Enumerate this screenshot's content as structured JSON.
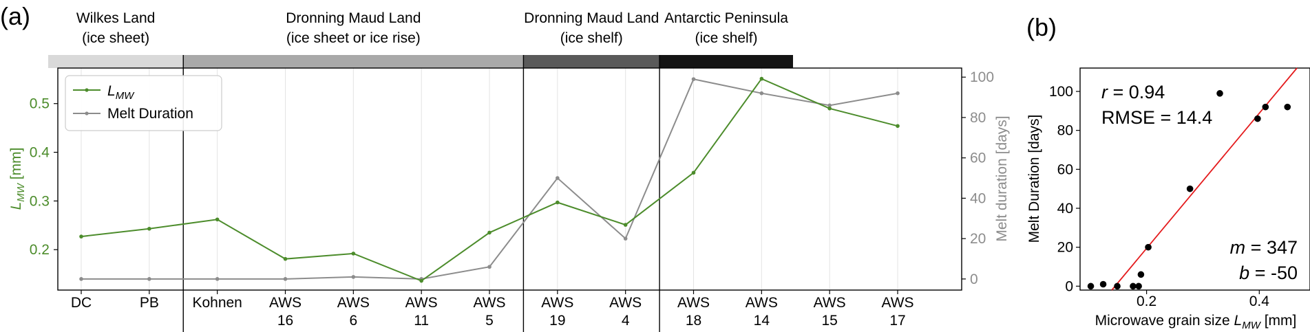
{
  "chart_data": [
    {
      "panel": "(a)",
      "type": "line",
      "regions": [
        {
          "line1": "Wilkes Land",
          "line2": "(ice sheet)",
          "color": "#d9d9d9",
          "start": 0,
          "end": 2
        },
        {
          "line1": "Dronning Maud Land",
          "line2": "(ice sheet or ice rise)",
          "color": "#a9a9a9",
          "start": 2,
          "end": 7
        },
        {
          "line1": "Dronning Maud Land",
          "line2": "(ice shelf)",
          "color": "#5a5a5a",
          "start": 7,
          "end": 9
        },
        {
          "line1": "Antarctic Peninsula",
          "line2": "(ice shelf)",
          "color": "#141414",
          "start": 9,
          "end": 13
        }
      ],
      "categories": [
        {
          "line1": "DC",
          "line2": ""
        },
        {
          "line1": "PB",
          "line2": ""
        },
        {
          "line1": "Kohnen",
          "line2": ""
        },
        {
          "line1": "AWS",
          "line2": "16"
        },
        {
          "line1": "AWS",
          "line2": "6"
        },
        {
          "line1": "AWS",
          "line2": "11"
        },
        {
          "line1": "AWS",
          "line2": "5"
        },
        {
          "line1": "AWS",
          "line2": "19"
        },
        {
          "line1": "AWS",
          "line2": "4"
        },
        {
          "line1": "AWS",
          "line2": "18"
        },
        {
          "line1": "AWS",
          "line2": "14"
        },
        {
          "line1": "AWS",
          "line2": "15"
        },
        {
          "line1": "AWS",
          "line2": "17"
        }
      ],
      "series": [
        {
          "name_main": "L",
          "name_sub": "MW",
          "axis": "left",
          "color": "#4c8c2b",
          "values": [
            0.227,
            0.243,
            0.262,
            0.181,
            0.192,
            0.136,
            0.235,
            0.297,
            0.251,
            0.358,
            0.551,
            0.49,
            0.454
          ]
        },
        {
          "name": "Melt Duration",
          "axis": "right",
          "color": "#8c8c8c",
          "values": [
            0,
            0,
            0,
            0,
            1,
            0,
            6,
            50,
            20,
            99,
            92,
            86,
            92
          ]
        }
      ],
      "ylabel_left_main": "L",
      "ylabel_left_sub": "MW",
      "ylabel_left_unit": " [mm]",
      "ylabel_right": "Melt duration [days]",
      "y_left_ticks": [
        "0.2",
        "0.3",
        "0.4",
        "0.5"
      ],
      "y_left_tick_values": [
        0.2,
        0.3,
        0.4,
        0.5
      ],
      "ylim_left": [
        0.117,
        0.573
      ],
      "y_right_ticks": [
        "0",
        "20",
        "40",
        "60",
        "80",
        "100"
      ],
      "y_right_tick_values": [
        0,
        20,
        40,
        60,
        80,
        100
      ],
      "ylim_right": [
        -5.5,
        104.5
      ],
      "grid": "vertical",
      "legend_position": "top-left"
    },
    {
      "panel": "(b)",
      "type": "scatter",
      "points": [
        {
          "x": 0.101,
          "y": 0
        },
        {
          "x": 0.123,
          "y": 1
        },
        {
          "x": 0.148,
          "y": 0
        },
        {
          "x": 0.176,
          "y": 0
        },
        {
          "x": 0.186,
          "y": 0
        },
        {
          "x": 0.19,
          "y": 6
        },
        {
          "x": 0.203,
          "y": 20
        },
        {
          "x": 0.277,
          "y": 50
        },
        {
          "x": 0.33,
          "y": 99
        },
        {
          "x": 0.397,
          "y": 86
        },
        {
          "x": 0.411,
          "y": 92
        },
        {
          "x": 0.45,
          "y": 92
        }
      ],
      "fit": {
        "m": 347,
        "b": -50,
        "color": "#e41a1c"
      },
      "xlabel_main": "Microwave grain size ",
      "xlabel_var": "L",
      "xlabel_sub": "MW",
      "xlabel_unit": " [mm]",
      "ylabel": "Melt Duration [days]",
      "x_ticks": [
        "0.2",
        "0.4"
      ],
      "x_tick_values": [
        0.2,
        0.4
      ],
      "xlim": [
        0.082,
        0.49
      ],
      "y_ticks": [
        "0",
        "20",
        "40",
        "60",
        "80",
        "100"
      ],
      "y_tick_values": [
        0,
        20,
        40,
        60,
        80,
        100
      ],
      "ylim": [
        -2,
        112
      ],
      "stats": {
        "r_label": "r",
        "r_value": " = 0.94",
        "rmse_label": "RMSE = 14.4",
        "m_label": "m",
        "m_value": " = 347",
        "b_label": "b",
        "b_value": " = -50"
      }
    }
  ]
}
